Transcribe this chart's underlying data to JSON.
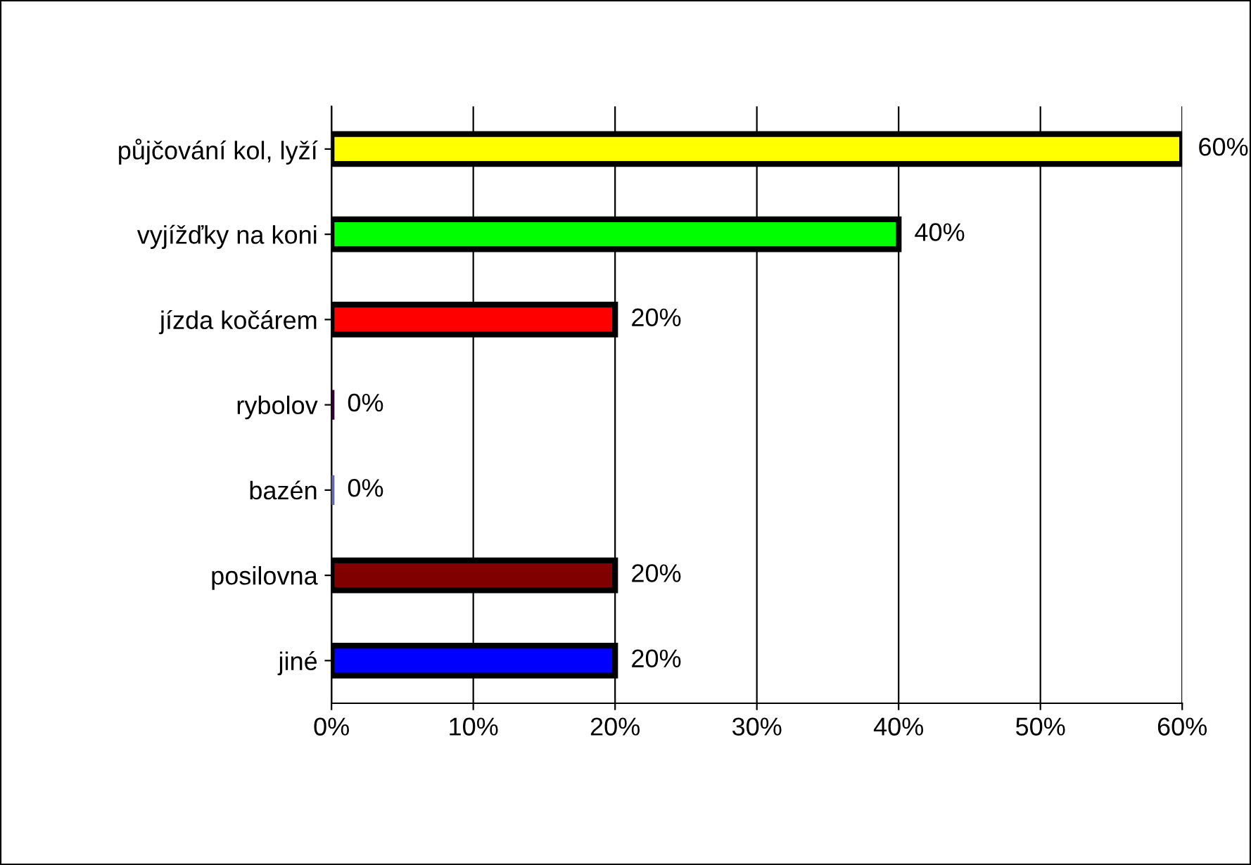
{
  "chart_data": {
    "type": "bar",
    "orientation": "horizontal",
    "categories": [
      "půjčování kol, lyží",
      "vyjížďky na koni",
      "jízda kočárem",
      "rybolov",
      "bazén",
      "posilovna",
      "jiné"
    ],
    "values": [
      60,
      40,
      20,
      0,
      0,
      20,
      20
    ],
    "colors": [
      "#ffff00",
      "#00ff00",
      "#ff0000",
      "#330033",
      "#6666aa",
      "#800000",
      "#0000ff"
    ],
    "value_labels": [
      "60%",
      "40%",
      "20%",
      "0%",
      "0%",
      "20%",
      "20%"
    ],
    "xlim": [
      0,
      60
    ],
    "xticks": [
      {
        "value": 0,
        "label": "0%"
      },
      {
        "value": 10,
        "label": "10%"
      },
      {
        "value": 20,
        "label": "20%"
      },
      {
        "value": 30,
        "label": "30%"
      },
      {
        "value": 40,
        "label": "40%"
      },
      {
        "value": 50,
        "label": "50%"
      },
      {
        "value": 60,
        "label": "60%"
      }
    ],
    "grid": "x"
  }
}
